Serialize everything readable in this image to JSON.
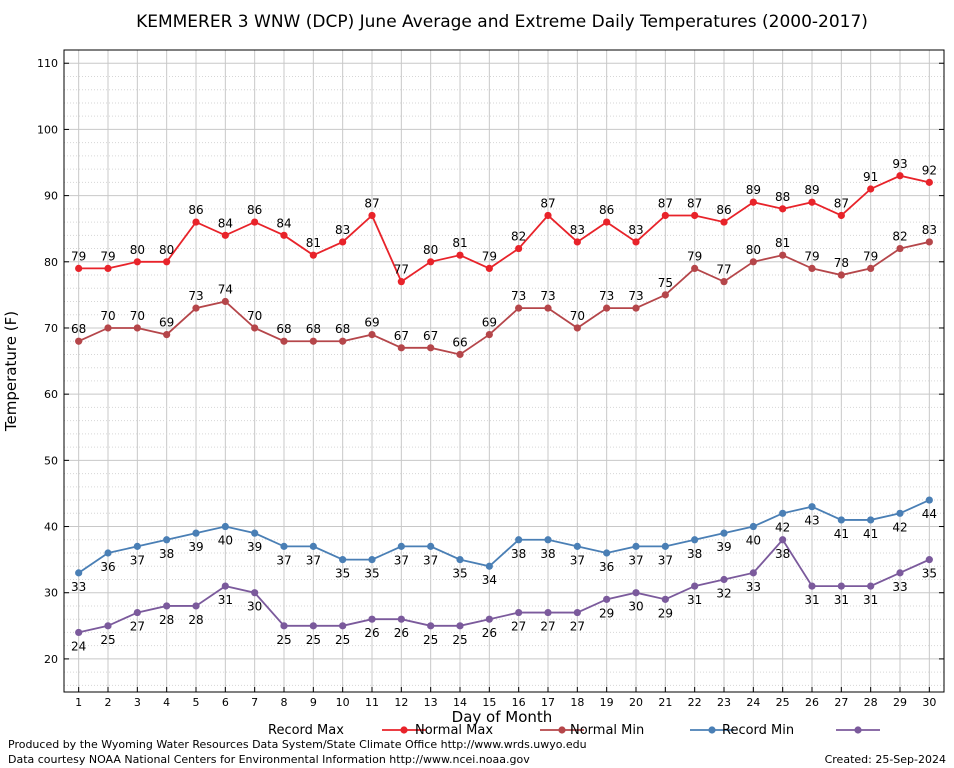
{
  "chart_data": {
    "type": "line",
    "title": "KEMMERER 3 WNW (DCP) June Average and Extreme Daily Temperatures (2000-2017)",
    "xlabel": "Day of Month",
    "ylabel": "Temperature (F)",
    "xlim": [
      0.5,
      30.5
    ],
    "ylim": [
      15,
      112
    ],
    "yticks": [
      20,
      30,
      40,
      50,
      60,
      70,
      80,
      90,
      100,
      110
    ],
    "x": [
      1,
      2,
      3,
      4,
      5,
      6,
      7,
      8,
      9,
      10,
      11,
      12,
      13,
      14,
      15,
      16,
      17,
      18,
      19,
      20,
      21,
      22,
      23,
      24,
      25,
      26,
      27,
      28,
      29,
      30
    ],
    "grid": true,
    "legend_position": "bottom",
    "series": [
      {
        "name": "Record Max",
        "color": "#e8232a",
        "label_pos": "above",
        "values": [
          79,
          79,
          80,
          80,
          86,
          84,
          86,
          84,
          81,
          83,
          87,
          77,
          80,
          81,
          79,
          82,
          87,
          83,
          86,
          83,
          87,
          87,
          86,
          89,
          88,
          89,
          87,
          91,
          93,
          92
        ]
      },
      {
        "name": "Normal Max",
        "color": "#b5464a",
        "label_pos": "above",
        "values": [
          68,
          70,
          70,
          69,
          73,
          74,
          70,
          68,
          68,
          68,
          69,
          67,
          67,
          66,
          69,
          73,
          73,
          70,
          73,
          73,
          75,
          79,
          77,
          80,
          81,
          79,
          78,
          79,
          82,
          83
        ]
      },
      {
        "name": "Normal Min",
        "color": "#4a7fb5",
        "label_pos": "below",
        "values": [
          33,
          36,
          37,
          38,
          39,
          40,
          39,
          37,
          37,
          35,
          35,
          37,
          37,
          35,
          34,
          38,
          38,
          37,
          36,
          37,
          37,
          38,
          39,
          40,
          42,
          43,
          41,
          41,
          42,
          44
        ]
      },
      {
        "name": "Record Min",
        "color": "#7b5a9c",
        "label_pos": "below",
        "values": [
          24,
          25,
          27,
          28,
          28,
          31,
          30,
          25,
          25,
          25,
          26,
          26,
          25,
          25,
          26,
          27,
          27,
          27,
          29,
          30,
          29,
          31,
          32,
          33,
          38,
          31,
          31,
          31,
          33,
          35
        ]
      }
    ]
  },
  "footer": {
    "credit_1": "Produced by the Wyoming Water Resources Data System/State Climate Office http://www.wrds.uwyo.edu",
    "credit_2": "Data courtesy NOAA National Centers for Environmental Information http://www.ncei.noaa.gov",
    "created": "Created: 25-Sep-2024"
  }
}
